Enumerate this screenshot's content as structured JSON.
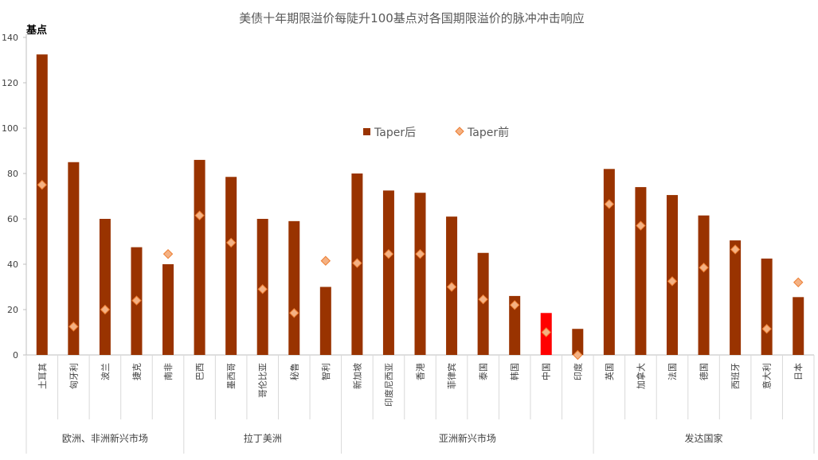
{
  "chart_data": {
    "type": "bar",
    "title": "美债十年期限溢价每陡升100基点对各国期限溢价的脉冲冲击响应",
    "ylabel": "基点",
    "xlabel": "",
    "ylim": [
      0,
      140
    ],
    "yticks": [
      0,
      20,
      40,
      60,
      80,
      100,
      120,
      140
    ],
    "grid": false,
    "legend_position": "center",
    "categories": [
      "土耳其",
      "匈牙利",
      "波兰",
      "捷克",
      "南非",
      "巴西",
      "墨西哥",
      "哥伦比亚",
      "秘鲁",
      "智利",
      "新加坡",
      "印度尼西亚",
      "香港",
      "菲律宾",
      "泰国",
      "韩国",
      "中国",
      "印度",
      "英国",
      "加拿大",
      "法国",
      "德国",
      "西班牙",
      "意大利",
      "日本"
    ],
    "groups": [
      {
        "label": "欧洲、非洲新兴市场",
        "count": 5
      },
      {
        "label": "拉丁美洲",
        "count": 5
      },
      {
        "label": "亚洲新兴市场",
        "count": 8
      },
      {
        "label": "发达国家",
        "count": 7
      }
    ],
    "series": [
      {
        "name": "Taper后",
        "kind": "bar",
        "color": "#993300",
        "highlight": {
          "index": 16,
          "color": "#ff0000"
        },
        "values": [
          132.5,
          85,
          60,
          47.5,
          40,
          86,
          78.5,
          60,
          59,
          30,
          80,
          72.5,
          71.5,
          61,
          45,
          26,
          18.5,
          11.5,
          82,
          74,
          70.5,
          61.5,
          50.5,
          42.5,
          25.5
        ]
      },
      {
        "name": "Taper前",
        "kind": "marker",
        "color": "#f4b183",
        "stroke": "#ed7d31",
        "values": [
          75,
          12.5,
          20,
          24,
          44.5,
          61.5,
          49.5,
          29,
          18.5,
          41.5,
          40.5,
          44.5,
          44.5,
          30,
          24.5,
          22,
          10,
          0,
          66.5,
          57,
          32.5,
          38.5,
          46.5,
          11.5,
          32
        ]
      }
    ]
  }
}
